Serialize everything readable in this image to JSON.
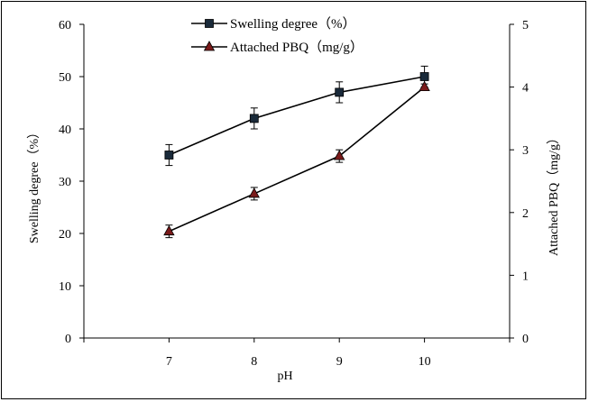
{
  "chart_data": {
    "type": "line",
    "title": "",
    "xlabel": "pH",
    "categories": [
      "7",
      "8",
      "9",
      "10"
    ],
    "x": [
      7,
      8,
      9,
      10
    ],
    "y_left": {
      "label": "Swelling degree（%）",
      "lim": [
        0,
        60
      ],
      "ticks": [
        "0",
        "10",
        "20",
        "30",
        "40",
        "50",
        "60"
      ]
    },
    "y_right": {
      "label": "Attached PBQ（mg/g）",
      "lim": [
        0,
        5
      ],
      "ticks": [
        "0",
        "1",
        "2",
        "3",
        "4",
        "5"
      ]
    },
    "series": [
      {
        "name": "Swelling degree（%）",
        "axis": "left",
        "marker": "square",
        "values": [
          35,
          42,
          47,
          50
        ],
        "errors": [
          2,
          2,
          2,
          2
        ]
      },
      {
        "name": "Attached PBQ（mg/g）",
        "axis": "right",
        "marker": "triangle",
        "values": [
          1.7,
          2.3,
          2.9,
          4.0
        ],
        "errors": [
          0.1,
          0.1,
          0.1,
          0.05
        ]
      }
    ],
    "legend_position": "top-center",
    "grid": false,
    "colors": {
      "line": "#000000",
      "square_marker": "#1a2a3a",
      "triangle_marker": "#7a1a1a"
    }
  }
}
